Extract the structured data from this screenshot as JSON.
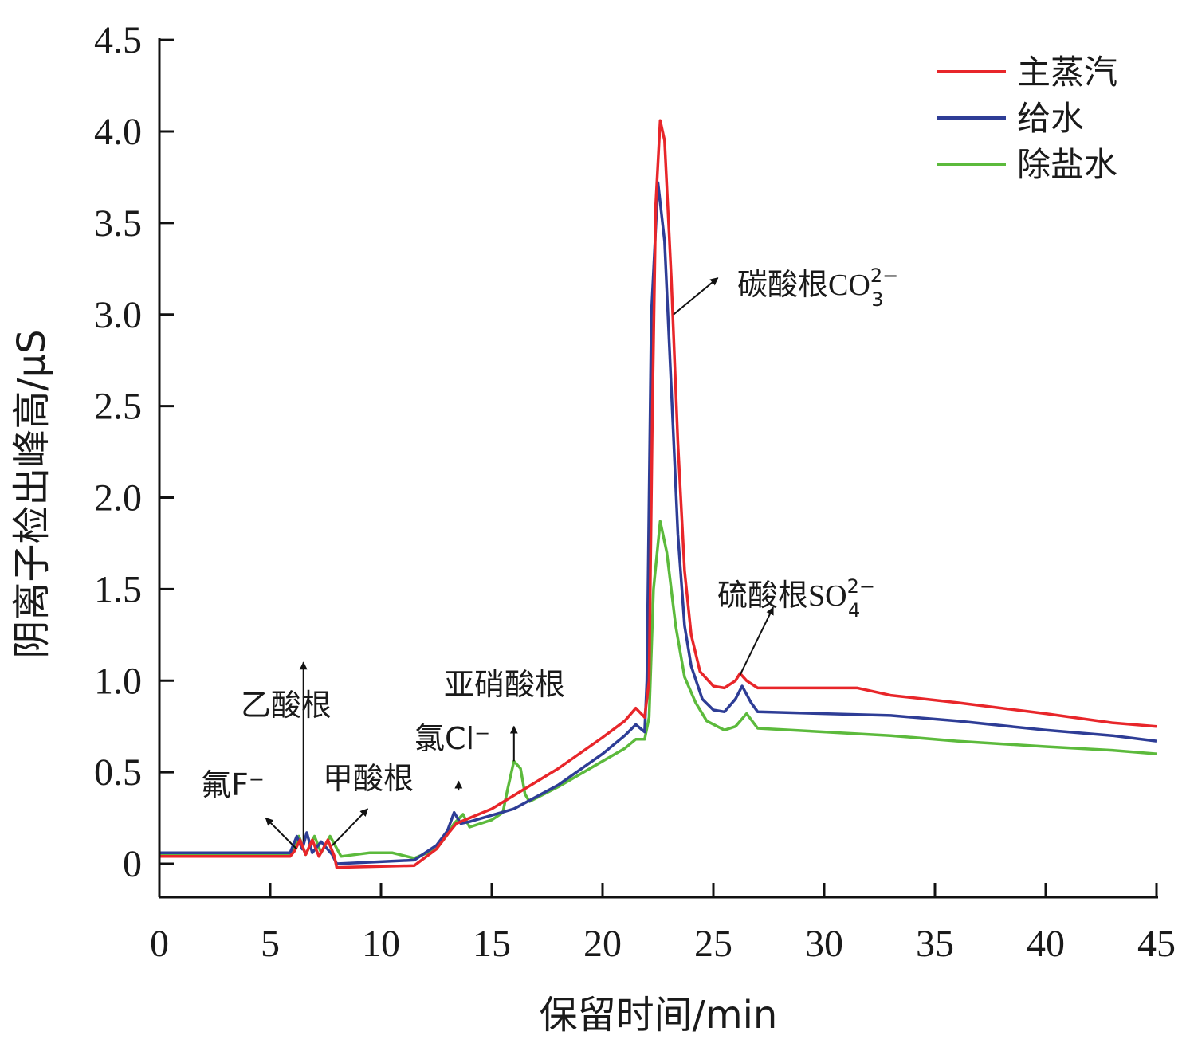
{
  "chart_data": {
    "type": "line",
    "xlabel": "保留时间/min",
    "ylabel": "阴离子检出峰高/μS",
    "xlim": [
      0,
      45
    ],
    "ylim": [
      -0.18,
      4.5
    ],
    "x_ticks": [
      "0",
      "5",
      "10",
      "15",
      "20",
      "25",
      "30",
      "35",
      "40",
      "45"
    ],
    "y_ticks": [
      "0",
      "0.5",
      "1.0",
      "1.5",
      "2.0",
      "2.5",
      "3.0",
      "3.5",
      "4.0",
      "4.5"
    ],
    "grid": false,
    "legend_position": "top-right",
    "series": [
      {
        "name": "主蒸汽",
        "color": "#e8262a",
        "points": [
          [
            0,
            0.04
          ],
          [
            5.9,
            0.04
          ],
          [
            6.1,
            0.07
          ],
          [
            6.35,
            0.13
          ],
          [
            6.6,
            0.05
          ],
          [
            6.9,
            0.13
          ],
          [
            7.2,
            0.04
          ],
          [
            7.6,
            0.13
          ],
          [
            7.9,
            0.04
          ],
          [
            8.0,
            -0.02
          ],
          [
            11.5,
            -0.01
          ],
          [
            12.5,
            0.08
          ],
          [
            13.0,
            0.16
          ],
          [
            13.4,
            0.22
          ],
          [
            13.8,
            0.24
          ],
          [
            15.0,
            0.3
          ],
          [
            18.0,
            0.52
          ],
          [
            20.0,
            0.69
          ],
          [
            21.0,
            0.78
          ],
          [
            21.5,
            0.85
          ],
          [
            21.9,
            0.8
          ],
          [
            22.1,
            1.0
          ],
          [
            22.25,
            2.5
          ],
          [
            22.4,
            3.6
          ],
          [
            22.6,
            4.06
          ],
          [
            22.8,
            3.95
          ],
          [
            23.1,
            3.2
          ],
          [
            23.4,
            2.3
          ],
          [
            23.7,
            1.6
          ],
          [
            24.0,
            1.25
          ],
          [
            24.4,
            1.05
          ],
          [
            25.0,
            0.97
          ],
          [
            25.5,
            0.96
          ],
          [
            26.0,
            1.0
          ],
          [
            26.2,
            1.04
          ],
          [
            26.5,
            1.0
          ],
          [
            27.0,
            0.96
          ],
          [
            30.0,
            0.96
          ],
          [
            31.5,
            0.96
          ],
          [
            33.0,
            0.92
          ],
          [
            36.0,
            0.88
          ],
          [
            40.0,
            0.82
          ],
          [
            43.0,
            0.77
          ],
          [
            45.0,
            0.75
          ]
        ]
      },
      {
        "name": "给水",
        "color": "#2e3d96",
        "points": [
          [
            0,
            0.06
          ],
          [
            5.9,
            0.06
          ],
          [
            6.2,
            0.15
          ],
          [
            6.45,
            0.08
          ],
          [
            6.65,
            0.17
          ],
          [
            6.9,
            0.06
          ],
          [
            7.3,
            0.12
          ],
          [
            7.8,
            0.05
          ],
          [
            8.0,
            0.0
          ],
          [
            11.5,
            0.02
          ],
          [
            12.5,
            0.1
          ],
          [
            13.0,
            0.18
          ],
          [
            13.3,
            0.28
          ],
          [
            13.6,
            0.22
          ],
          [
            14.0,
            0.23
          ],
          [
            16.0,
            0.3
          ],
          [
            18.0,
            0.43
          ],
          [
            20.0,
            0.6
          ],
          [
            21.0,
            0.7
          ],
          [
            21.5,
            0.76
          ],
          [
            21.9,
            0.72
          ],
          [
            22.0,
            1.0
          ],
          [
            22.2,
            3.0
          ],
          [
            22.5,
            3.72
          ],
          [
            22.8,
            3.4
          ],
          [
            23.1,
            2.6
          ],
          [
            23.4,
            1.8
          ],
          [
            23.7,
            1.3
          ],
          [
            24.0,
            1.08
          ],
          [
            24.5,
            0.9
          ],
          [
            25.0,
            0.84
          ],
          [
            25.5,
            0.83
          ],
          [
            26.0,
            0.9
          ],
          [
            26.3,
            0.97
          ],
          [
            26.7,
            0.88
          ],
          [
            27.0,
            0.83
          ],
          [
            30.0,
            0.82
          ],
          [
            33.0,
            0.81
          ],
          [
            36.0,
            0.78
          ],
          [
            40.0,
            0.73
          ],
          [
            43.0,
            0.7
          ],
          [
            45.0,
            0.67
          ]
        ]
      },
      {
        "name": "除盐水",
        "color": "#5cba3c",
        "points": [
          [
            0,
            0.05
          ],
          [
            5.9,
            0.05
          ],
          [
            6.1,
            0.1
          ],
          [
            6.3,
            0.15
          ],
          [
            6.6,
            0.05
          ],
          [
            7.0,
            0.15
          ],
          [
            7.3,
            0.06
          ],
          [
            7.7,
            0.15
          ],
          [
            8.2,
            0.04
          ],
          [
            9.5,
            0.06
          ],
          [
            10.5,
            0.06
          ],
          [
            11.5,
            0.03
          ],
          [
            12.5,
            0.08
          ],
          [
            13.0,
            0.16
          ],
          [
            13.3,
            0.22
          ],
          [
            13.7,
            0.27
          ],
          [
            14.0,
            0.2
          ],
          [
            15.0,
            0.24
          ],
          [
            15.5,
            0.28
          ],
          [
            15.7,
            0.4
          ],
          [
            16.0,
            0.56
          ],
          [
            16.3,
            0.52
          ],
          [
            16.5,
            0.38
          ],
          [
            16.7,
            0.34
          ],
          [
            18.0,
            0.42
          ],
          [
            20.0,
            0.56
          ],
          [
            21.0,
            0.63
          ],
          [
            21.5,
            0.68
          ],
          [
            21.9,
            0.68
          ],
          [
            22.1,
            0.8
          ],
          [
            22.3,
            1.5
          ],
          [
            22.6,
            1.87
          ],
          [
            22.9,
            1.7
          ],
          [
            23.3,
            1.3
          ],
          [
            23.7,
            1.02
          ],
          [
            24.2,
            0.88
          ],
          [
            24.7,
            0.78
          ],
          [
            25.5,
            0.73
          ],
          [
            26.0,
            0.75
          ],
          [
            26.5,
            0.82
          ],
          [
            27.0,
            0.74
          ],
          [
            30.0,
            0.72
          ],
          [
            33.0,
            0.7
          ],
          [
            36.0,
            0.67
          ],
          [
            40.0,
            0.64
          ],
          [
            43.0,
            0.62
          ],
          [
            45.0,
            0.6
          ]
        ]
      }
    ],
    "annotations": [
      {
        "id": "fluoride",
        "label": "氟F⁻",
        "arrow_from": [
          6.2,
          0.08
        ],
        "arrow_to": [
          4.8,
          0.25
        ]
      },
      {
        "id": "acetate",
        "label": "乙酸根",
        "arrow_from": [
          6.5,
          0.12
        ],
        "arrow_to": [
          6.5,
          1.1
        ]
      },
      {
        "id": "formate",
        "label": "甲酸根",
        "arrow_from": [
          7.8,
          0.1
        ],
        "arrow_to": [
          9.4,
          0.3
        ]
      },
      {
        "id": "chloride",
        "label": "氯Cl⁻",
        "arrow_from": [
          13.5,
          0.4
        ],
        "arrow_to": [
          13.5,
          0.45
        ]
      },
      {
        "id": "nitrite",
        "label": "亚硝酸根",
        "arrow_from": [
          16.0,
          0.56
        ],
        "arrow_to": [
          16.0,
          0.75
        ]
      },
      {
        "id": "carbonate",
        "label": "碳酸根",
        "formula": "CO",
        "subscript": "3",
        "superscript": "2−",
        "arrow_from": [
          23.2,
          3.0
        ],
        "arrow_to": [
          25.2,
          3.2
        ]
      },
      {
        "id": "sulfate",
        "label": "硫酸根",
        "formula": "SO",
        "subscript": "4",
        "superscript": "2−",
        "arrow_from": [
          26.2,
          1.03
        ],
        "arrow_to": [
          27.7,
          1.4
        ]
      }
    ]
  }
}
